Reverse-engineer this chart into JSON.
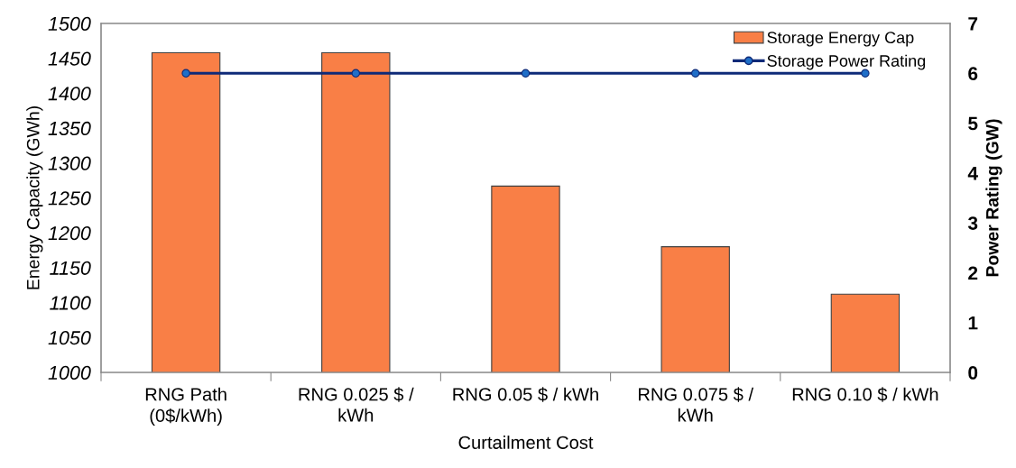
{
  "chart_data": {
    "type": "bar",
    "categories": [
      "RNG Path (0$/kWh)",
      "RNG 0.025 $ / kWh",
      "RNG 0.05 $ / kWh",
      "RNG 0.075 $ / kWh",
      "RNG 0.10 $ / kWh"
    ],
    "series": [
      {
        "name": "Storage Energy Cap",
        "color": "#f97f46",
        "values": [
          1458,
          1458,
          1267,
          1180,
          1112
        ]
      },
      {
        "name": "Storage Power Rating",
        "type": "line",
        "axis": "y2",
        "color": "#0e2a78",
        "marker": "circle",
        "line_style": "solid",
        "values": [
          6,
          6,
          6,
          6,
          6
        ]
      }
    ],
    "xlabel": "Curtailment Cost",
    "ylabel": "Energy Capacity (GWh)",
    "y2label": "Power Rating (GW)",
    "ylim": [
      1000,
      1500
    ],
    "yticks": [
      1000,
      1050,
      1100,
      1150,
      1200,
      1250,
      1300,
      1350,
      1400,
      1450,
      1500
    ],
    "y2lim": [
      0,
      7
    ],
    "y2ticks": [
      0,
      1,
      2,
      3,
      4,
      5,
      6,
      7
    ],
    "grid": false,
    "legend": "top right"
  }
}
